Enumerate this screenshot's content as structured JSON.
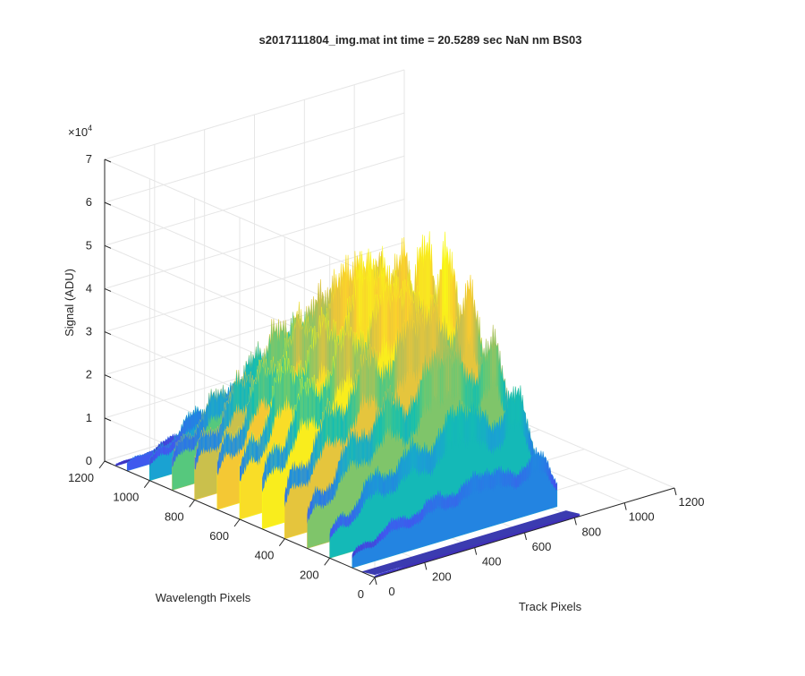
{
  "chart_data": {
    "type": "surface3d",
    "title": "s2017111804_img.mat int time = 20.5289 sec  NaN nm BS03",
    "xlabel": "Track Pixels",
    "ylabel": "Wavelength Pixels",
    "zlabel": "Signal (ADU)",
    "z_exponent_label": "×10",
    "z_exponent_power": "4",
    "x_ticks": [
      "0",
      "200",
      "400",
      "600",
      "800",
      "1000",
      "1200"
    ],
    "y_ticks": [
      "0",
      "200",
      "400",
      "600",
      "800",
      "1000",
      "1200"
    ],
    "z_ticks": [
      "0",
      "1",
      "2",
      "3",
      "4",
      "5",
      "6",
      "7"
    ],
    "xlim": [
      0,
      1200
    ],
    "ylim": [
      0,
      1200
    ],
    "zlim": [
      0,
      70000
    ],
    "grid": true,
    "colormap": "parula",
    "colormap_stops": [
      "#3e26a8",
      "#4353f0",
      "#2481e3",
      "#1aa3d1",
      "#13bfb0",
      "#5bc979",
      "#c2bf50",
      "#f9c932",
      "#f9fb15"
    ],
    "surface_rows_wavelength": [
      0,
      100,
      200,
      300,
      400,
      500,
      600,
      700,
      800,
      900,
      1000,
      1100,
      1150
    ],
    "track_peaks": [
      {
        "center": 30,
        "width": 55,
        "height": 15500
      },
      {
        "center": 170,
        "width": 95,
        "height": 32000
      },
      {
        "center": 330,
        "width": 90,
        "height": 41000
      },
      {
        "center": 480,
        "width": 85,
        "height": 44000
      },
      {
        "center": 600,
        "width": 85,
        "height": 44000
      },
      {
        "center": 745,
        "width": 80,
        "height": 52500
      }
    ]
  }
}
